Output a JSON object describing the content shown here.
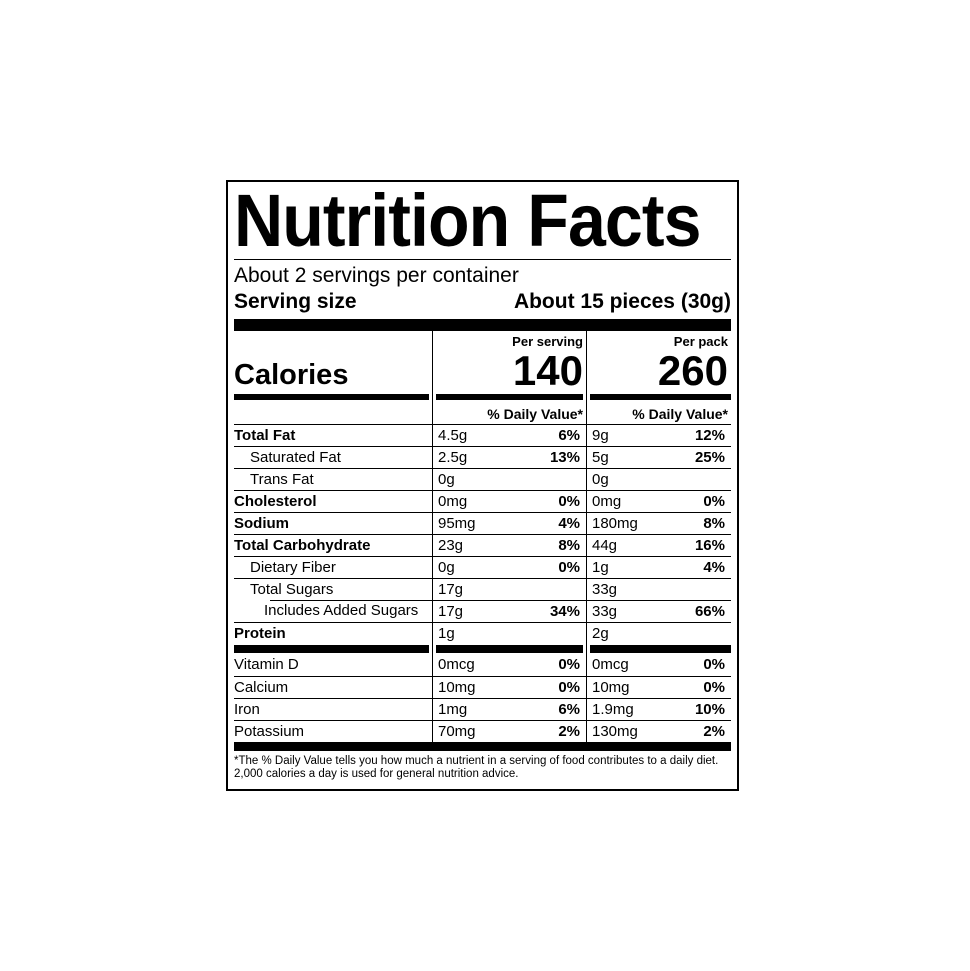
{
  "label": {
    "title": "Nutrition Facts",
    "servings_per_container": "About 2 servings per container",
    "serving_size_label": "Serving size",
    "serving_size_value": "About 15 pieces (30g)",
    "calories_label": "Calories",
    "per_serving_header": "Per serving",
    "per_pack_header": "Per pack",
    "calories_per_serving": "140",
    "calories_per_pack": "260",
    "daily_value_header": "% Daily Value*",
    "nutrients": [
      {
        "name": "Total Fat",
        "serving_amount": "4.5g",
        "serving_dv": "6%",
        "pack_amount": "9g",
        "pack_dv": "12%"
      },
      {
        "name": "Saturated Fat",
        "serving_amount": "2.5g",
        "serving_dv": "13%",
        "pack_amount": "5g",
        "pack_dv": "25%"
      },
      {
        "name": "Trans Fat",
        "serving_amount": "0g",
        "serving_dv": "",
        "pack_amount": "0g",
        "pack_dv": ""
      },
      {
        "name": "Cholesterol",
        "serving_amount": "0mg",
        "serving_dv": "0%",
        "pack_amount": "0mg",
        "pack_dv": "0%"
      },
      {
        "name": "Sodium",
        "serving_amount": "95mg",
        "serving_dv": "4%",
        "pack_amount": "180mg",
        "pack_dv": "8%"
      },
      {
        "name": "Total Carbohydrate",
        "serving_amount": "23g",
        "serving_dv": "8%",
        "pack_amount": "44g",
        "pack_dv": "16%"
      },
      {
        "name": "Dietary Fiber",
        "serving_amount": "0g",
        "serving_dv": "0%",
        "pack_amount": "1g",
        "pack_dv": "4%"
      },
      {
        "name": "Total Sugars",
        "serving_amount": "17g",
        "serving_dv": "",
        "pack_amount": "33g",
        "pack_dv": ""
      },
      {
        "name": "Includes Added Sugars",
        "serving_amount": "17g",
        "serving_dv": "34%",
        "pack_amount": "33g",
        "pack_dv": "66%"
      },
      {
        "name": "Protein",
        "serving_amount": "1g",
        "serving_dv": "",
        "pack_amount": "2g",
        "pack_dv": ""
      }
    ],
    "micronutrients": [
      {
        "name": "Vitamin D",
        "serving_amount": "0mcg",
        "serving_dv": "0%",
        "pack_amount": "0mcg",
        "pack_dv": "0%"
      },
      {
        "name": "Calcium",
        "serving_amount": "10mg",
        "serving_dv": "0%",
        "pack_amount": "10mg",
        "pack_dv": "0%"
      },
      {
        "name": "Iron",
        "serving_amount": "1mg",
        "serving_dv": "6%",
        "pack_amount": "1.9mg",
        "pack_dv": "10%"
      },
      {
        "name": "Potassium",
        "serving_amount": "70mg",
        "serving_dv": "2%",
        "pack_amount": "130mg",
        "pack_dv": "2%"
      }
    ],
    "footnote": "*The % Daily Value tells you how much a nutrient in a serving of food contributes to a daily diet. 2,000 calories a day is used for general nutrition advice.",
    "colors": {
      "ink": "#000000",
      "background": "#ffffff"
    }
  }
}
